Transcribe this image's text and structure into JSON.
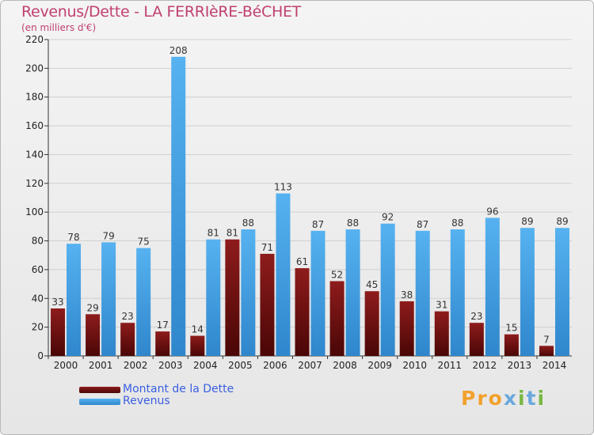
{
  "chart_data": {
    "type": "bar",
    "title": "Revenus/Dette - LA FERRIèRE-BéCHET",
    "subtitle": "(en milliers d'€)",
    "xlabel": "",
    "ylabel": "",
    "ylim": [
      0,
      220
    ],
    "yticks": [
      0,
      20,
      40,
      60,
      80,
      100,
      120,
      140,
      160,
      180,
      200,
      220
    ],
    "grid": true,
    "categories": [
      "2000",
      "2001",
      "2002",
      "2003",
      "2004",
      "2005",
      "2006",
      "2007",
      "2008",
      "2009",
      "2010",
      "2011",
      "2012",
      "2013",
      "2014"
    ],
    "series": [
      {
        "name": "Montant de la Dette",
        "color": "#8b1a1a",
        "values": [
          33,
          29,
          23,
          17,
          14,
          81,
          71,
          61,
          52,
          45,
          38,
          31,
          23,
          15,
          7
        ]
      },
      {
        "name": "Revenus",
        "color": "#4aa3e8",
        "values": [
          78,
          79,
          75,
          208,
          81,
          88,
          113,
          87,
          88,
          92,
          87,
          88,
          96,
          89,
          89
        ]
      }
    ],
    "legend_position": "bottom-left"
  },
  "branding": {
    "logo_text": "Proxiti",
    "logo_colors": [
      "#f2a12c",
      "#6aa8dd",
      "#77b844"
    ]
  }
}
